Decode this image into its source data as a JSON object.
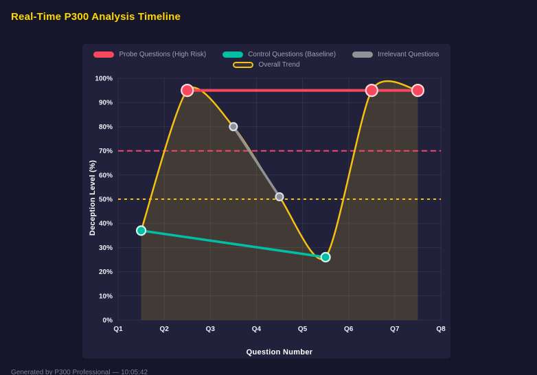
{
  "title": "Real-Time P300 Analysis Timeline",
  "footer": "Generated by P300 Professional — 10:05:42",
  "colors": {
    "page_bg": "#16162a",
    "panel_bg": "#21213c",
    "title": "#ffd700",
    "grid": "rgba(255,255,255,0.07)",
    "axis_text": "#eceef6",
    "legend_text": "#9ba1b5"
  },
  "chart_data": {
    "type": "line",
    "xlabel": "Question Number",
    "ylabel": "Deception Level (%)",
    "xlim": [
      1,
      8
    ],
    "ylim": [
      0,
      100
    ],
    "grid": true,
    "legend_position": "top",
    "x_ticks": [
      {
        "label": "Q1",
        "value": 1
      },
      {
        "label": "Q2",
        "value": 2
      },
      {
        "label": "Q3",
        "value": 3
      },
      {
        "label": "Q4",
        "value": 4
      },
      {
        "label": "Q5",
        "value": 5
      },
      {
        "label": "Q6",
        "value": 6
      },
      {
        "label": "Q7",
        "value": 7
      },
      {
        "label": "Q8",
        "value": 8
      }
    ],
    "y_ticks": [
      {
        "label": "0%",
        "value": 0
      },
      {
        "label": "10%",
        "value": 10
      },
      {
        "label": "20%",
        "value": 20
      },
      {
        "label": "30%",
        "value": 30
      },
      {
        "label": "40%",
        "value": 40
      },
      {
        "label": "50%",
        "value": 50
      },
      {
        "label": "60%",
        "value": 60
      },
      {
        "label": "70%",
        "value": 70
      },
      {
        "label": "80%",
        "value": 80
      },
      {
        "label": "90%",
        "value": 90
      },
      {
        "label": "100%",
        "value": 100
      }
    ],
    "series": [
      {
        "id": "probe",
        "name": "Probe Questions (High Risk)",
        "color": "#f8485e",
        "marker_stroke": "#ffd9de",
        "line_width": 4,
        "marker_radius": 8.5,
        "points": [
          [
            2.5,
            95
          ],
          [
            6.5,
            95
          ],
          [
            7.5,
            95
          ]
        ]
      },
      {
        "id": "control",
        "name": "Control Questions (Baseline)",
        "color": "#00bfa5",
        "marker_stroke": "#d4f6ef",
        "line_width": 3.5,
        "marker_radius": 6.5,
        "points": [
          [
            1.5,
            37
          ],
          [
            5.5,
            26
          ]
        ]
      },
      {
        "id": "irrelevant",
        "name": "Irrelevant Questions",
        "color": "#8e9196",
        "marker_stroke": "#dddfe4",
        "line_width": 3.5,
        "marker_radius": 5.5,
        "points": [
          [
            3.5,
            80
          ],
          [
            4.5,
            51
          ]
        ]
      }
    ],
    "trend": {
      "id": "trend",
      "name": "Overall Trend",
      "color": "#f5c211",
      "fill": "rgba(245,194,17,0.16)",
      "filled": false,
      "line_width": 2.5,
      "points": [
        [
          1.5,
          37
        ],
        [
          2.5,
          95
        ],
        [
          3.5,
          80
        ],
        [
          4.5,
          51
        ],
        [
          5.5,
          26
        ],
        [
          6.5,
          95
        ],
        [
          7.5,
          95
        ]
      ]
    },
    "thresholds": [
      {
        "name": "probe-threshold-line",
        "value": 70,
        "color": "#f8486e",
        "dash": "8 5"
      },
      {
        "name": "baseline-threshold-line",
        "value": 50,
        "color": "#f5c211",
        "dash": "4 5"
      }
    ]
  }
}
